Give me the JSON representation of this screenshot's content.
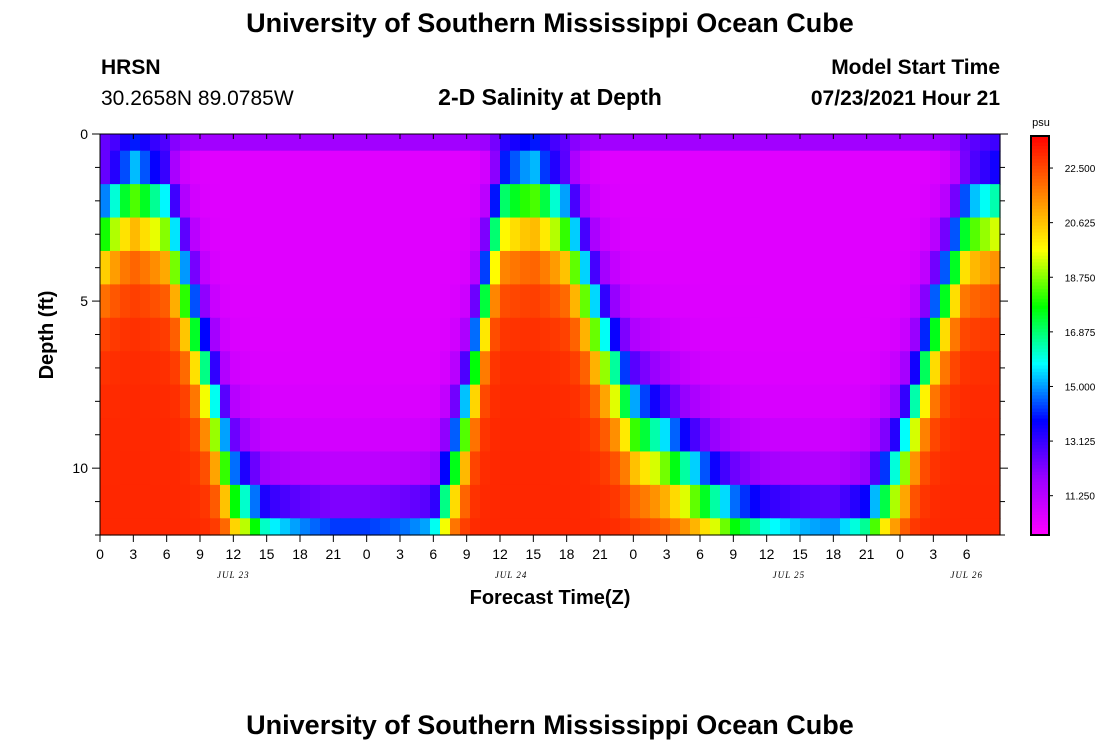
{
  "page": {
    "title_top": "University of Southern Mississippi Ocean Cube",
    "title_bottom": "University of Southern Mississippi Ocean Cube",
    "station_code": "HRSN",
    "station_coords": "30.2658N  89.0785W",
    "plot_title": "2-D Salinity at Depth",
    "model_start_label": "Model Start Time",
    "model_start_value": "07/23/2021 Hour 21"
  },
  "colors": {
    "background": "#ffffff",
    "frame": "#000000",
    "colormap": [
      "#ff00ff",
      "#9a00ff",
      "#0000ff",
      "#00ffff",
      "#00ff00",
      "#ffff00",
      "#ff8000",
      "#ff0000"
    ]
  },
  "chart_data": {
    "type": "heatmap",
    "title": "2-D Salinity at Depth",
    "xlabel": "Forecast Time(Z)",
    "ylabel": "Depth (ft)",
    "colorbar_units": "psu",
    "colorbar_ticks": [
      "22.500",
      "20.625",
      "18.750",
      "16.875",
      "15.000",
      "13.125",
      "11.250"
    ],
    "colorbar_tick_values": [
      22.5,
      20.625,
      18.75,
      16.875,
      15.0,
      13.125,
      11.25
    ],
    "value_range": [
      9.9,
      23.6
    ],
    "x_range_hours": [
      0,
      81
    ],
    "x_tick_labels": [
      "0",
      "3",
      "6",
      "9",
      "12",
      "15",
      "18",
      "21",
      "0",
      "3",
      "6",
      "9",
      "12",
      "15",
      "18",
      "21",
      "0",
      "3",
      "6",
      "9",
      "12",
      "15",
      "18",
      "21",
      "0",
      "3",
      "6"
    ],
    "date_labels": [
      {
        "label": "JUL 23",
        "hour": 12
      },
      {
        "label": "JUL 24",
        "hour": 37
      },
      {
        "label": "JUL 25",
        "hour": 62
      },
      {
        "label": "JUL 26",
        "hour": 78
      }
    ],
    "y_range_ft": [
      0,
      12
    ],
    "y_tick_labels": [
      "0",
      "5",
      "10"
    ],
    "y_tick_values": [
      0,
      5,
      10
    ],
    "depth_levels_ft": [
      0,
      1,
      2,
      3,
      4,
      5,
      6,
      7,
      8,
      9,
      10,
      11,
      12
    ],
    "surface_low": 10.5,
    "bottom_high": 23.0,
    "tide_shape": [
      [
        0,
        0.88
      ],
      [
        3,
        1.0
      ],
      [
        6,
        0.92
      ],
      [
        9,
        0.58
      ],
      [
        12,
        0.22
      ],
      [
        15,
        0.08
      ],
      [
        18,
        0.05
      ],
      [
        21,
        0.03
      ],
      [
        24,
        0.03
      ],
      [
        27,
        0.04
      ],
      [
        30,
        0.06
      ],
      [
        33,
        0.42
      ],
      [
        36,
        0.95
      ],
      [
        39,
        1.0
      ],
      [
        42,
        0.9
      ],
      [
        45,
        0.62
      ],
      [
        48,
        0.4
      ],
      [
        51,
        0.32
      ],
      [
        54,
        0.22
      ],
      [
        57,
        0.13
      ],
      [
        60,
        0.08
      ],
      [
        63,
        0.06
      ],
      [
        66,
        0.05
      ],
      [
        69,
        0.1
      ],
      [
        72,
        0.28
      ],
      [
        75,
        0.62
      ],
      [
        78,
        0.9
      ],
      [
        81,
        0.95
      ]
    ]
  }
}
